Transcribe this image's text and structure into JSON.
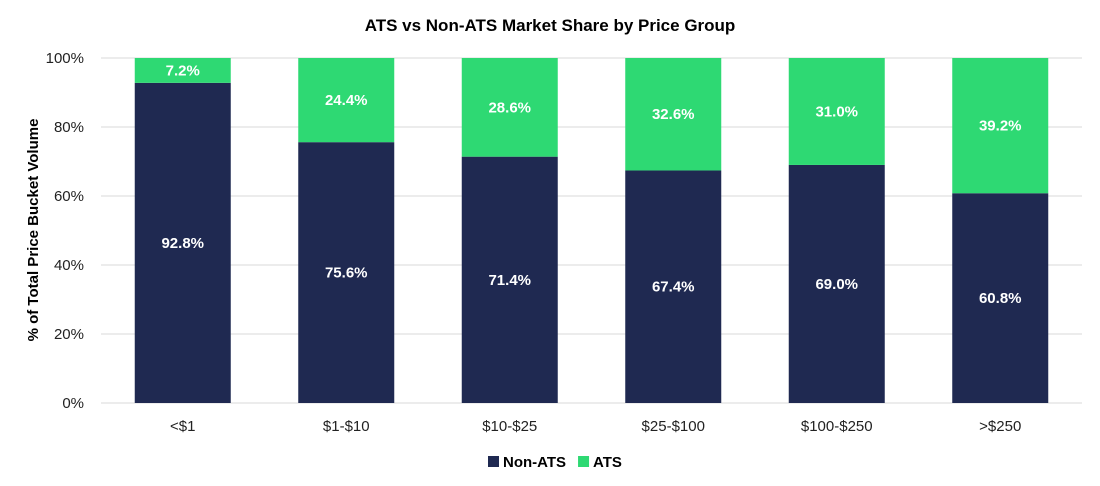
{
  "chart_data": {
    "type": "bar",
    "stacked": true,
    "title": "ATS vs Non-ATS Market Share by Price Group",
    "xlabel": "",
    "ylabel": "% of Total Price Bucket Volume",
    "ylim": [
      0,
      100
    ],
    "yticks": [
      "0%",
      "20%",
      "40%",
      "60%",
      "80%",
      "100%"
    ],
    "grid": true,
    "legend_position": "bottom",
    "categories": [
      "<$1",
      "$1-$10",
      "$10-$25",
      "$25-$100",
      "$100-$250",
      ">$250"
    ],
    "series": [
      {
        "name": "Non-ATS",
        "color": "#1f2951",
        "values": [
          92.8,
          75.6,
          71.4,
          67.4,
          69.0,
          60.8
        ],
        "labels": [
          "92.8%",
          "75.6%",
          "71.4%",
          "67.4%",
          "69.0%",
          "60.8%"
        ]
      },
      {
        "name": "ATS",
        "color": "#2ed973",
        "values": [
          7.2,
          24.4,
          28.6,
          32.6,
          31.0,
          39.2
        ],
        "labels": [
          "7.2%",
          "24.4%",
          "28.6%",
          "32.6%",
          "31.0%",
          "39.2%"
        ]
      }
    ]
  }
}
